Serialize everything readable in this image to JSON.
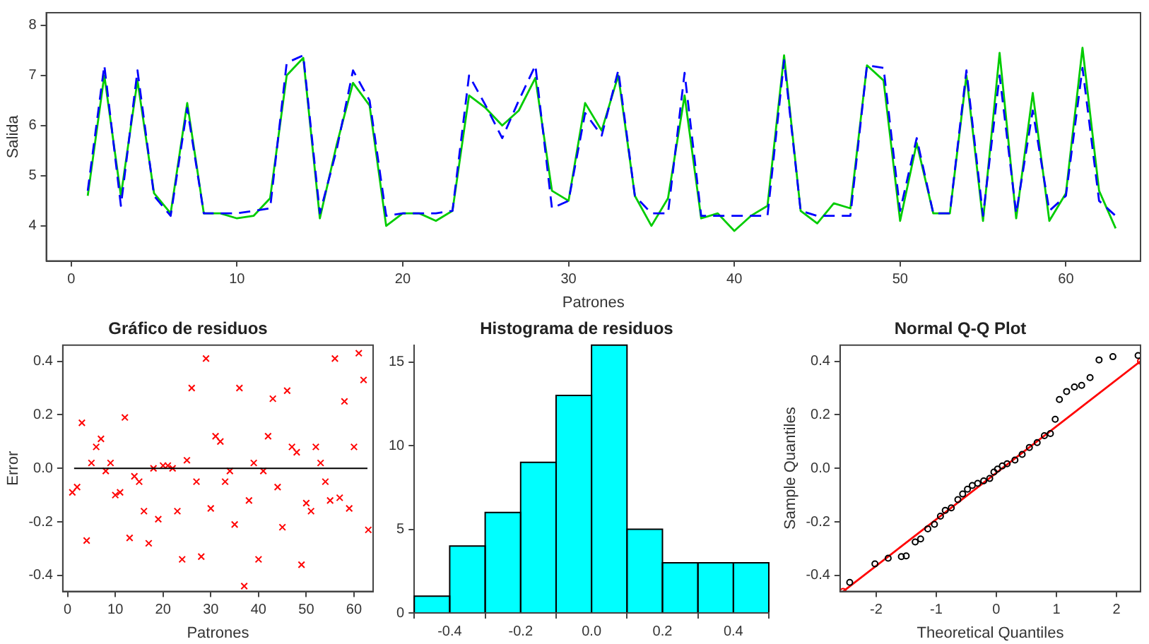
{
  "chart_data": [
    {
      "type": "line",
      "xlabel": "Patrones",
      "ylabel": "Salida",
      "xlim": [
        -1.5,
        64.5
      ],
      "ylim": [
        3.3,
        8.25
      ],
      "xticks": [
        0,
        10,
        20,
        30,
        40,
        50,
        60
      ],
      "yticks": [
        4,
        5,
        6,
        7,
        8
      ],
      "grid": false,
      "marker": "none",
      "x": [
        1,
        2,
        3,
        4,
        5,
        6,
        7,
        8,
        9,
        10,
        11,
        12,
        13,
        14,
        15,
        16,
        17,
        18,
        19,
        20,
        21,
        22,
        23,
        24,
        25,
        26,
        27,
        28,
        29,
        30,
        31,
        32,
        33,
        34,
        35,
        36,
        37,
        38,
        39,
        40,
        41,
        42,
        43,
        44,
        45,
        46,
        47,
        48,
        49,
        50,
        51,
        52,
        53,
        54,
        55,
        56,
        57,
        58,
        59,
        60,
        61,
        62,
        63
      ],
      "series": [
        {
          "color": "#0000ff",
          "line_style": "dashed",
          "values": [
            4.7,
            7.2,
            4.4,
            7.1,
            4.6,
            4.2,
            6.35,
            4.25,
            4.25,
            4.25,
            4.3,
            4.35,
            7.25,
            7.4,
            4.25,
            5.5,
            7.1,
            6.5,
            4.2,
            4.25,
            4.25,
            4.25,
            4.3,
            7.0,
            6.4,
            5.75,
            6.5,
            7.2,
            4.35,
            4.5,
            6.25,
            5.8,
            7.1,
            4.6,
            4.25,
            4.25,
            7.05,
            4.2,
            4.2,
            4.2,
            4.2,
            4.2,
            7.3,
            4.3,
            4.2,
            4.2,
            4.2,
            7.2,
            7.15,
            4.3,
            5.75,
            4.25,
            4.25,
            7.1,
            4.2,
            7.0,
            4.25,
            6.3,
            4.3,
            4.6,
            7.15,
            4.5,
            4.2
          ]
        },
        {
          "color": "#00cc00",
          "line_style": "solid",
          "values": [
            4.6,
            7.0,
            4.6,
            6.9,
            4.65,
            4.25,
            6.45,
            4.25,
            4.25,
            4.15,
            4.2,
            4.55,
            7.0,
            7.35,
            4.15,
            5.6,
            6.85,
            6.4,
            4.0,
            4.25,
            4.25,
            4.1,
            4.3,
            6.6,
            6.35,
            6.0,
            6.3,
            6.95,
            4.7,
            4.5,
            6.45,
            5.9,
            7.0,
            4.6,
            4.0,
            4.55,
            6.6,
            4.15,
            4.25,
            3.9,
            4.2,
            4.4,
            7.4,
            4.3,
            4.05,
            4.45,
            4.35,
            7.2,
            6.9,
            4.1,
            5.65,
            4.25,
            4.25,
            7.0,
            4.1,
            7.45,
            4.15,
            6.65,
            4.1,
            4.65,
            7.55,
            4.7,
            3.95
          ]
        }
      ]
    },
    {
      "type": "scatter",
      "title": "Gráfico de residuos",
      "xlabel": "Patrones",
      "ylabel": "Error",
      "xlim": [
        -1,
        64
      ],
      "ylim": [
        -0.46,
        0.46
      ],
      "xticks": [
        0,
        10,
        20,
        30,
        40,
        50,
        60
      ],
      "yticks": [
        -0.4,
        -0.2,
        {
          "value": 0,
          "label": "0.0"
        },
        0.2,
        0.4
      ],
      "grid": false,
      "marker": "cross",
      "ref_lines": [
        {
          "axis": "y",
          "value": 0,
          "color": "#000000"
        }
      ],
      "x": [
        1,
        2,
        3,
        4,
        5,
        6,
        7,
        8,
        9,
        10,
        11,
        12,
        13,
        14,
        15,
        16,
        17,
        18,
        19,
        20,
        21,
        22,
        23,
        24,
        25,
        26,
        27,
        28,
        29,
        30,
        31,
        32,
        33,
        34,
        35,
        36,
        37,
        38,
        39,
        40,
        41,
        42,
        43,
        44,
        45,
        46,
        47,
        48,
        49,
        50,
        51,
        52,
        53,
        54,
        55,
        56,
        57,
        58,
        59,
        60,
        61,
        62,
        63
      ],
      "series": [
        {
          "color": "#ff0000",
          "values": [
            -0.09,
            -0.07,
            0.17,
            -0.27,
            0.02,
            0.08,
            0.11,
            -0.01,
            0.02,
            -0.1,
            -0.09,
            0.19,
            -0.26,
            -0.03,
            -0.05,
            -0.16,
            -0.28,
            0.0,
            -0.19,
            0.01,
            0.01,
            0.0,
            -0.16,
            -0.34,
            0.03,
            0.3,
            -0.05,
            -0.33,
            0.41,
            -0.15,
            0.12,
            0.1,
            -0.05,
            -0.01,
            -0.21,
            0.3,
            -0.44,
            -0.12,
            0.02,
            -0.34,
            -0.01,
            0.12,
            0.26,
            -0.07,
            -0.22,
            0.29,
            0.08,
            0.06,
            -0.36,
            -0.13,
            -0.16,
            0.08,
            0.02,
            -0.05,
            -0.12,
            0.41,
            -0.11,
            0.25,
            -0.15,
            0.08,
            0.43,
            0.33,
            -0.23
          ]
        }
      ]
    },
    {
      "type": "histogram",
      "title": "Histograma de residuos",
      "color": "#00ffff",
      "bins": [
        -0.5,
        -0.4,
        -0.3,
        -0.2,
        -0.1,
        0,
        0.1,
        0.2,
        0.3,
        0.4,
        0.5
      ],
      "values": [
        1,
        4,
        6,
        9,
        13,
        16,
        5,
        3,
        3,
        3
      ],
      "xlim": [
        -0.5,
        0.5
      ],
      "ylim": [
        0,
        16
      ],
      "xticks": [
        -0.4,
        -0.2,
        {
          "value": 0,
          "label": "0.0"
        },
        0.2,
        0.4
      ],
      "yticks": [
        0,
        5,
        10,
        15
      ],
      "grid": false
    },
    {
      "type": "scatter",
      "title": "Normal Q-Q Plot",
      "xlabel": "Theoretical Quantiles",
      "ylabel": "Sample Quantiles",
      "xlim": [
        -2.6,
        2.4
      ],
      "ylim": [
        -0.46,
        0.46
      ],
      "xticks": [
        -2,
        -1,
        0,
        1,
        2
      ],
      "yticks": [
        -0.4,
        -0.2,
        {
          "value": 0,
          "label": "0.0"
        },
        0.2,
        0.4
      ],
      "grid": false,
      "marker": "circle",
      "series": [
        {
          "color": "#000000",
          "x": [
            -2.44,
            -2.02,
            -1.8,
            -1.58,
            -1.5,
            -1.35,
            -1.26,
            -1.14,
            -1.03,
            -0.93,
            -0.85,
            -0.75,
            -0.64,
            -0.56,
            -0.48,
            -0.4,
            -0.31,
            -0.21,
            -0.11,
            -0.04,
            0.02,
            0.1,
            0.18,
            0.31,
            0.43,
            0.55,
            0.68,
            0.8,
            0.9,
            0.98,
            1.05,
            1.17,
            1.3,
            1.42,
            1.56,
            1.71,
            1.94,
            2.36
          ],
          "values": [
            -0.426,
            -0.357,
            -0.336,
            -0.33,
            -0.327,
            -0.275,
            -0.264,
            -0.226,
            -0.209,
            -0.179,
            -0.157,
            -0.148,
            -0.117,
            -0.096,
            -0.078,
            -0.064,
            -0.056,
            -0.047,
            -0.038,
            -0.014,
            -0.003,
            0.009,
            0.017,
            0.031,
            0.052,
            0.078,
            0.096,
            0.122,
            0.13,
            0.183,
            0.257,
            0.287,
            0.304,
            0.31,
            0.339,
            0.405,
            0.417,
            0.421
          ]
        },
        {
          "type": "line",
          "color": "#ff0000",
          "x": [
            -2.55,
            2.4
          ],
          "values": [
            -0.46,
            0.4
          ]
        }
      ]
    }
  ]
}
